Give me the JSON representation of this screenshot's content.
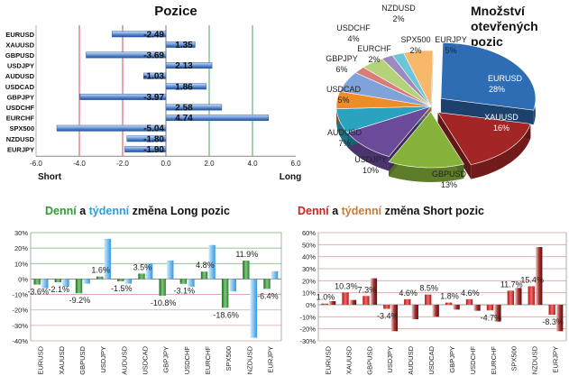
{
  "chart_data": [
    {
      "type": "bar",
      "orientation": "horizontal",
      "title": "Pozice",
      "categories": [
        "EURUSD",
        "XAUUSD",
        "GBPUSD",
        "USDJPY",
        "AUDUSD",
        "USDCAD",
        "GBPJPY",
        "USDCHF",
        "EURCHF",
        "SPX500",
        "NZDUSD",
        "EURJPY"
      ],
      "values": [
        -2.49,
        1.35,
        -3.69,
        2.13,
        -1.03,
        1.86,
        -3.97,
        2.58,
        4.74,
        -5.04,
        -1.8,
        -1.9
      ],
      "value_labels": [
        "-2.49",
        "1.35",
        "-3.69",
        "2.13",
        "-1.03",
        "1.86",
        "-3.97",
        "2.58",
        "4.74",
        "-5.04",
        "-1.80",
        "-1.90"
      ],
      "xlim": [
        -6,
        6
      ],
      "xticks": [
        "-6.0",
        "-4.0",
        "-2.0",
        "0.0",
        "2.0",
        "4.0",
        "6.0"
      ],
      "short_label": "Short",
      "long_label": "Long",
      "colors": {
        "bar": "#5b8fd6",
        "bar_dark": "#1f4f9c",
        "red_line": "#c0504d",
        "green_line": "#4ea24e"
      }
    },
    {
      "type": "pie",
      "title_lines": [
        "Množství",
        "otevřených",
        "pozic"
      ],
      "slices": [
        {
          "name": "EURUSD",
          "pct": "28%",
          "value": 28,
          "color": "#2e6db4"
        },
        {
          "name": "XAUUSD",
          "pct": "16%",
          "value": 16,
          "color": "#a32626"
        },
        {
          "name": "GBPUSD",
          "pct": "13%",
          "value": 13,
          "color": "#86b33a"
        },
        {
          "name": "USDJPY",
          "pct": "10%",
          "value": 10,
          "color": "#6b4a99"
        },
        {
          "name": "AUDUSD",
          "pct": "7%",
          "value": 7,
          "color": "#2aa3c0"
        },
        {
          "name": "USDCAD",
          "pct": "5%",
          "value": 5,
          "color": "#f08c28"
        },
        {
          "name": "GBPJPY",
          "pct": "6%",
          "value": 6,
          "color": "#7fa3d8"
        },
        {
          "name": "EURCHF",
          "pct": "2%",
          "value": 2,
          "color": "#d97c79"
        },
        {
          "name": "USDCHF",
          "pct": "4%",
          "value": 4,
          "color": "#b5d27a"
        },
        {
          "name": "NZDUSD",
          "pct": "2%",
          "value": 2,
          "color": "#9f8abf"
        },
        {
          "name": "SPX500",
          "pct": "2%",
          "value": 2,
          "color": "#6cc6d8"
        },
        {
          "name": "EURJPY",
          "pct": "5%",
          "value": 5,
          "color": "#f6b86b"
        }
      ]
    },
    {
      "type": "bar",
      "title_parts": [
        "Denní",
        " a ",
        "týdenní",
        " změna Long pozic"
      ],
      "categories": [
        "EURUSD",
        "XAUUSD",
        "GBPUSD",
        "USDJPY",
        "AUDUSD",
        "USDCAD",
        "GBPJPY",
        "USDCHF",
        "EURCHF",
        "SPX500",
        "NZDUSD",
        "EURJPY"
      ],
      "series": [
        {
          "name": "Denní",
          "values": [
            -3.6,
            -2.1,
            -9.2,
            1.6,
            -1.5,
            3.5,
            -10.8,
            -3.1,
            4.8,
            -18.6,
            11.9,
            -6.4
          ]
        },
        {
          "name": "týdenní",
          "values": [
            -6,
            -5,
            -3,
            26,
            -3,
            10,
            12,
            -5,
            22,
            -8,
            -38,
            5
          ]
        }
      ],
      "value_labels": [
        "-3.6%",
        "-2.1%",
        "-9.2%",
        "1.6%",
        "-1.5%",
        "3.5%",
        "-10.8%",
        "-3.1%",
        "4.8%",
        "-18.6%",
        "11.9%",
        "-6.4%"
      ],
      "ylim": [
        -40,
        30
      ],
      "yticks": [
        "30%",
        "20%",
        "10%",
        "0%",
        "-10%",
        "-20%",
        "-30%",
        "-40%"
      ],
      "colors": {
        "daily": "#3f8f3f",
        "weekly": "#5aaee8",
        "title_daily": "#2f9e2f",
        "title_weekly": "#2aa0e0"
      }
    },
    {
      "type": "bar",
      "title_parts": [
        "Denní",
        " a ",
        "týdenní",
        " změna Short pozic"
      ],
      "categories": [
        "EURUSD",
        "XAUUSD",
        "GBPUSD",
        "USDJPY",
        "AUDUSD",
        "USDCAD",
        "GBPJPY",
        "USDCHF",
        "EURCHF",
        "SPX500",
        "NZDUSD",
        "EURJPY"
      ],
      "series": [
        {
          "name": "Denní",
          "values": [
            1.0,
            10.3,
            7.3,
            -3.4,
            4.6,
            8.5,
            1.8,
            4.6,
            -4.7,
            11.7,
            15.4,
            -8.3
          ]
        },
        {
          "name": "týdenní",
          "values": [
            3,
            4,
            22,
            -22,
            -12,
            -10,
            -4,
            -5,
            -14,
            14,
            48,
            -22
          ]
        }
      ],
      "value_labels": [
        "1.0%",
        "10.3%",
        "7.3%",
        "-3.4%",
        "4.6%",
        "8.5%",
        "1.8%",
        "4.6%",
        "-4.7%",
        "11.7%",
        "15.4%",
        "-8.3%"
      ],
      "ylim": [
        -30,
        60
      ],
      "yticks": [
        "60%",
        "50%",
        "40%",
        "30%",
        "20%",
        "10%",
        "0%",
        "-10%",
        "-20%",
        "-30%"
      ],
      "colors": {
        "daily": "#d42020",
        "weekly": "#8c1a1a",
        "title_daily": "#d02020",
        "title_weekly": "#c87a3a"
      }
    }
  ]
}
